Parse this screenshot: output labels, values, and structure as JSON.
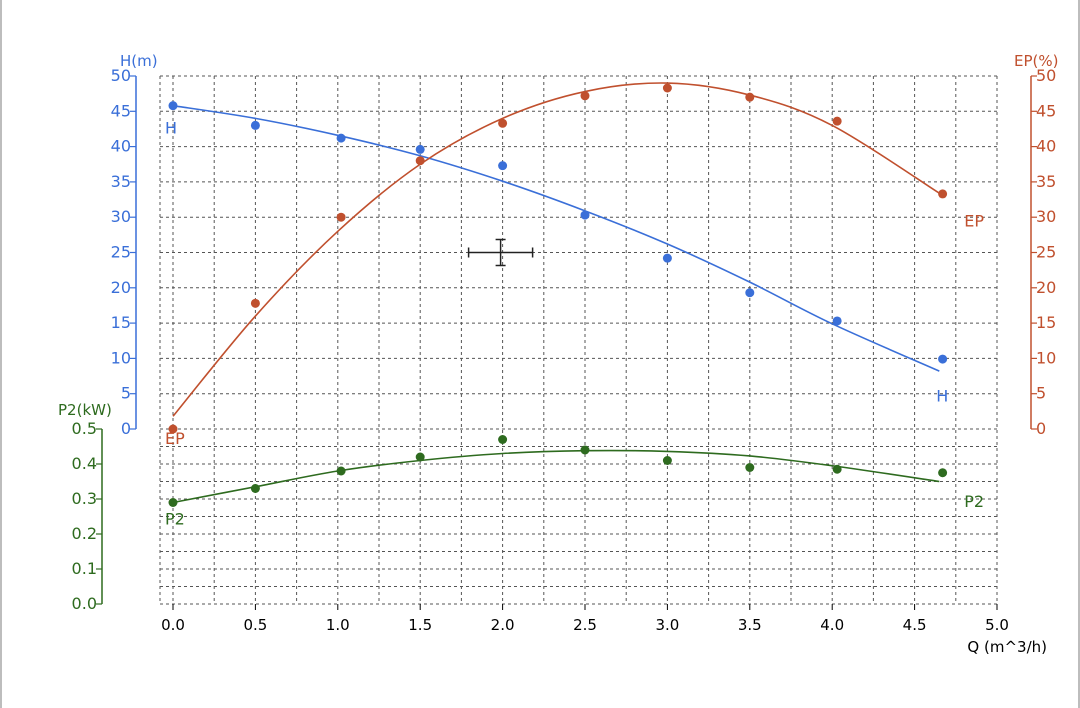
{
  "chart_data": {
    "type": "scatter",
    "x_axis": {
      "label": "Q (m^3/h)",
      "range": [
        0,
        5
      ],
      "ticks": [
        "0.0",
        "0.5",
        "1.0",
        "1.5",
        "2.0",
        "2.5",
        "3.0",
        "3.5",
        "4.0",
        "4.5",
        "5.0"
      ],
      "color": "#000000"
    },
    "y_axes": [
      {
        "id": "H",
        "label": "H(m)",
        "range": [
          0,
          50
        ],
        "ticks": [
          "0",
          "5",
          "10",
          "15",
          "20",
          "25",
          "30",
          "35",
          "40",
          "45",
          "50"
        ],
        "side": "left",
        "color": "#3a6fd8"
      },
      {
        "id": "EP",
        "label": "EP(%)",
        "range": [
          0,
          50
        ],
        "ticks": [
          "0",
          "5",
          "10",
          "15",
          "20",
          "25",
          "30",
          "35",
          "40",
          "45",
          "50"
        ],
        "side": "right",
        "color": "#c0502e"
      },
      {
        "id": "P2",
        "label": "P2(kW)",
        "range": [
          0,
          0.5
        ],
        "ticks": [
          "0.0",
          "0.1",
          "0.2",
          "0.3",
          "0.4",
          "0.5"
        ],
        "side": "left",
        "color": "#2e6b1f"
      }
    ],
    "grid": true,
    "series": [
      {
        "name": "H",
        "axis": "H",
        "color": "#3a6fd8",
        "points": [
          [
            0.0,
            45.8
          ],
          [
            0.5,
            43.0
          ],
          [
            1.02,
            41.2
          ],
          [
            1.5,
            39.6
          ],
          [
            2.0,
            37.3
          ],
          [
            2.5,
            30.3
          ],
          [
            3.0,
            24.2
          ],
          [
            3.5,
            19.3
          ],
          [
            4.03,
            15.3
          ],
          [
            4.67,
            9.9
          ]
        ],
        "fit": [
          [
            0.0,
            45.8
          ],
          [
            0.5,
            44.0
          ],
          [
            1.0,
            41.6
          ],
          [
            1.5,
            38.7
          ],
          [
            2.0,
            35.1
          ],
          [
            2.5,
            30.9
          ],
          [
            3.0,
            26.2
          ],
          [
            3.5,
            20.8
          ],
          [
            4.0,
            14.9
          ],
          [
            4.65,
            8.2
          ]
        ]
      },
      {
        "name": "EP",
        "axis": "EP",
        "color": "#c0502e",
        "points": [
          [
            0.0,
            0.0
          ],
          [
            0.5,
            17.8
          ],
          [
            1.02,
            30.0
          ],
          [
            1.5,
            38.0
          ],
          [
            2.0,
            43.3
          ],
          [
            2.5,
            47.2
          ],
          [
            3.0,
            48.3
          ],
          [
            3.5,
            47.0
          ],
          [
            4.03,
            43.6
          ],
          [
            4.67,
            33.3
          ]
        ],
        "fit": [
          [
            0.0,
            1.8
          ],
          [
            0.5,
            16.0
          ],
          [
            1.0,
            28.0
          ],
          [
            1.5,
            37.5
          ],
          [
            2.0,
            44.0
          ],
          [
            2.5,
            47.8
          ],
          [
            3.0,
            49.0
          ],
          [
            3.5,
            47.3
          ],
          [
            4.0,
            43.0
          ],
          [
            4.65,
            33.4
          ]
        ]
      },
      {
        "name": "P2",
        "axis": "P2",
        "color": "#2e6b1f",
        "points": [
          [
            0.0,
            0.29
          ],
          [
            0.5,
            0.33
          ],
          [
            1.02,
            0.38
          ],
          [
            1.5,
            0.42
          ],
          [
            2.0,
            0.47
          ],
          [
            2.5,
            0.44
          ],
          [
            3.0,
            0.41
          ],
          [
            3.5,
            0.39
          ],
          [
            4.03,
            0.385
          ],
          [
            4.67,
            0.375
          ]
        ],
        "fit": [
          [
            0.0,
            0.29
          ],
          [
            0.5,
            0.335
          ],
          [
            1.0,
            0.38
          ],
          [
            1.5,
            0.41
          ],
          [
            2.0,
            0.43
          ],
          [
            2.5,
            0.438
          ],
          [
            3.0,
            0.436
          ],
          [
            3.5,
            0.423
          ],
          [
            4.0,
            0.395
          ],
          [
            4.65,
            0.35
          ]
        ]
      }
    ],
    "curve_labels": [
      {
        "text": "H",
        "series": "H",
        "x": 0.0,
        "y": 43.0
      },
      {
        "text": "H",
        "series": "H",
        "x": 4.68,
        "y": 5.0
      },
      {
        "text": "EP",
        "series": "EP",
        "x": 0.0,
        "y": -1.0
      },
      {
        "text": "EP",
        "series": "EP",
        "x": 4.85,
        "y": 29.8
      },
      {
        "text": "P2",
        "series": "P2",
        "x": 0.0,
        "y": 0.25
      },
      {
        "text": "P2",
        "series": "P2",
        "x": 4.85,
        "y": 0.3
      }
    ],
    "crosshair": {
      "x": 2.0,
      "y": 25.0,
      "axis": "H"
    }
  }
}
